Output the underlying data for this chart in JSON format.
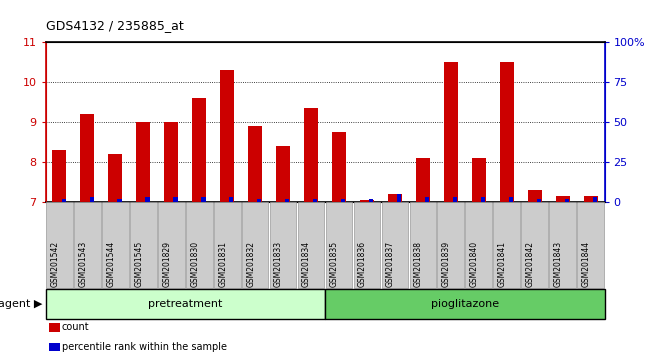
{
  "title": "GDS4132 / 235885_at",
  "samples": [
    "GSM201542",
    "GSM201543",
    "GSM201544",
    "GSM201545",
    "GSM201829",
    "GSM201830",
    "GSM201831",
    "GSM201832",
    "GSM201833",
    "GSM201834",
    "GSM201835",
    "GSM201836",
    "GSM201837",
    "GSM201838",
    "GSM201839",
    "GSM201840",
    "GSM201841",
    "GSM201842",
    "GSM201843",
    "GSM201844"
  ],
  "count_values": [
    8.3,
    9.2,
    8.2,
    9.0,
    9.0,
    9.6,
    10.3,
    8.9,
    8.4,
    9.35,
    8.75,
    7.05,
    7.2,
    8.1,
    10.5,
    8.1,
    10.5,
    7.3,
    7.15,
    7.15
  ],
  "percentile_values": [
    2,
    3,
    2,
    3,
    3,
    3,
    3,
    2,
    2,
    2,
    2,
    2,
    5,
    3,
    3,
    3,
    3,
    2,
    2,
    3
  ],
  "count_color": "#cc0000",
  "percentile_color": "#0000cc",
  "ylim_left": [
    7,
    11
  ],
  "ylim_right": [
    0,
    100
  ],
  "yticks_left": [
    7,
    8,
    9,
    10,
    11
  ],
  "yticks_right": [
    0,
    25,
    50,
    75,
    100
  ],
  "ytick_labels_right": [
    "0",
    "25",
    "50",
    "75",
    "100%"
  ],
  "grid_values": [
    8,
    9,
    10
  ],
  "pretreatment_label": "pretreatment",
  "pioglitazone_label": "pioglitazone",
  "pretreatment_count": 10,
  "pioglitazone_count": 10,
  "agent_label": "agent",
  "legend_count": "count",
  "legend_percentile": "percentile rank within the sample",
  "bar_width": 0.5,
  "pretreatment_color": "#ccffcc",
  "pioglitazone_color": "#66cc66",
  "xticklabel_bg": "#cccccc",
  "xticklabel_bg_edge": "#999999"
}
